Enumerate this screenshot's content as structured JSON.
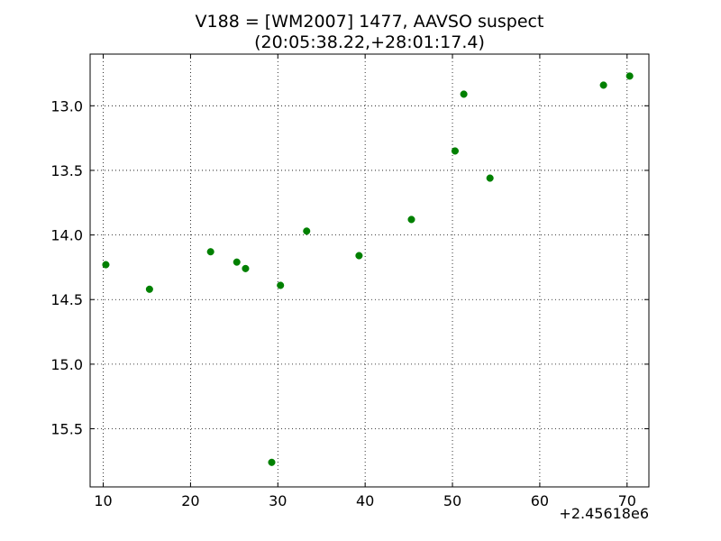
{
  "chart_data": {
    "type": "scatter",
    "title": "V188 = [WM2007] 1477, AAVSO suspect",
    "subtitle": "(20:05:38.22,+28:01:17.4)",
    "xlabel": "",
    "ylabel": "",
    "x_offset_label": "+2.45618e6",
    "xlim": [
      8.5,
      72.5
    ],
    "ylim": [
      15.95,
      12.6
    ],
    "y_inverted": true,
    "grid": true,
    "marker_color": "#008000",
    "x_ticks": [
      {
        "value": 10,
        "label": "10"
      },
      {
        "value": 20,
        "label": "20"
      },
      {
        "value": 30,
        "label": "30"
      },
      {
        "value": 40,
        "label": "40"
      },
      {
        "value": 50,
        "label": "50"
      },
      {
        "value": 60,
        "label": "60"
      },
      {
        "value": 70,
        "label": "70"
      }
    ],
    "y_ticks": [
      {
        "value": 13.0,
        "label": "13.0"
      },
      {
        "value": 13.5,
        "label": "13.5"
      },
      {
        "value": 14.0,
        "label": "14.0"
      },
      {
        "value": 14.5,
        "label": "14.5"
      },
      {
        "value": 15.0,
        "label": "15.0"
      },
      {
        "value": 15.5,
        "label": "15.5"
      }
    ],
    "points": [
      {
        "x": 10.3,
        "y": 14.23
      },
      {
        "x": 15.3,
        "y": 14.42
      },
      {
        "x": 22.3,
        "y": 14.13
      },
      {
        "x": 25.3,
        "y": 14.21
      },
      {
        "x": 26.3,
        "y": 14.26
      },
      {
        "x": 29.3,
        "y": 15.76
      },
      {
        "x": 30.3,
        "y": 14.39
      },
      {
        "x": 33.3,
        "y": 13.97
      },
      {
        "x": 39.3,
        "y": 14.16
      },
      {
        "x": 45.3,
        "y": 13.88
      },
      {
        "x": 50.3,
        "y": 13.35
      },
      {
        "x": 51.3,
        "y": 12.91
      },
      {
        "x": 54.3,
        "y": 13.56
      },
      {
        "x": 67.3,
        "y": 12.84
      },
      {
        "x": 70.3,
        "y": 12.77
      }
    ]
  }
}
